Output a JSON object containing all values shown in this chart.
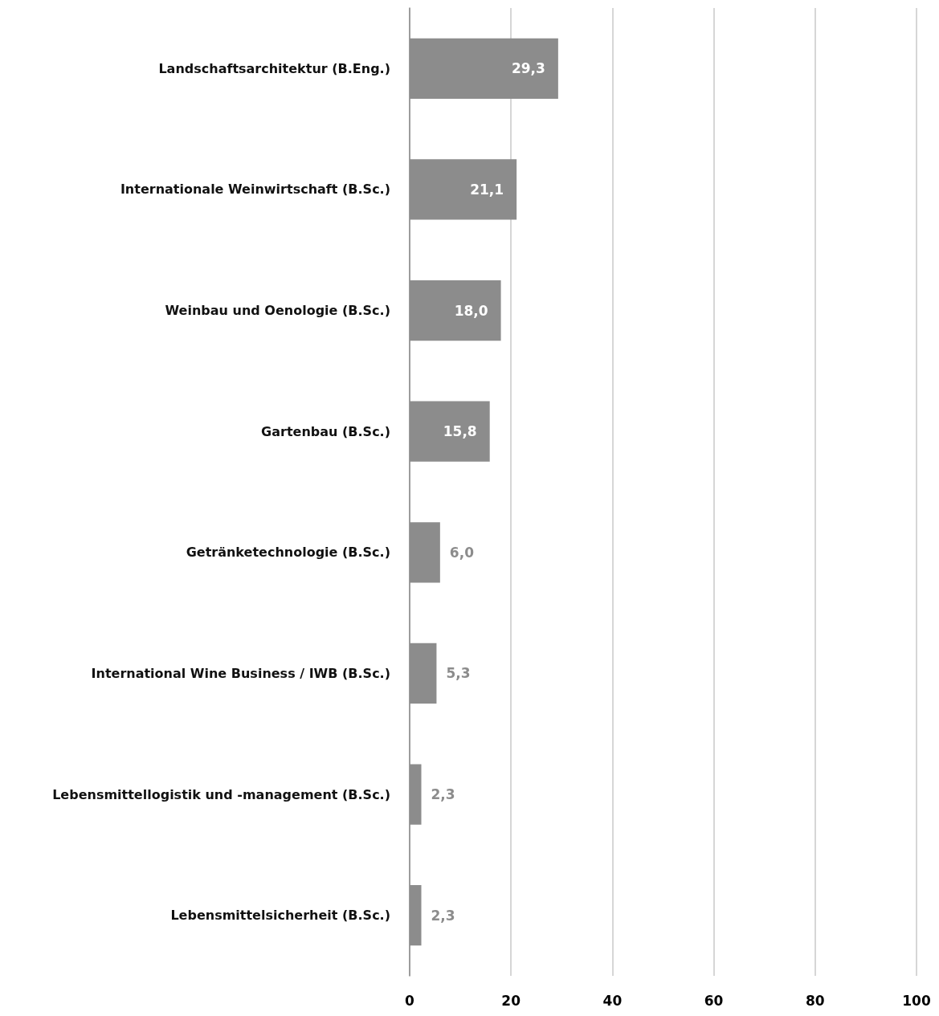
{
  "chart_data": {
    "type": "bar",
    "orientation": "horizontal",
    "categories": [
      "Landschaftsarchitektur (B.Eng.)",
      "Internationale Weinwirtschaft (B.Sc.)",
      "Weinbau und Oenologie (B.Sc.)",
      "Gartenbau (B.Sc.)",
      "Getränketechnologie (B.Sc.)",
      "International Wine Business / IWB (B.Sc.)",
      "Lebensmittellogistik und -management (B.Sc.)",
      "Lebensmittelsicherheit (B.Sc.)"
    ],
    "values": [
      29.3,
      21.1,
      18.0,
      15.8,
      6.0,
      5.3,
      2.3,
      2.3
    ],
    "value_labels": [
      "29,3",
      "21,1",
      "18,0",
      "15,8",
      "6,0",
      "5,3",
      "2,3",
      "2,3"
    ],
    "color": "#8c8c8c",
    "xlim": [
      0,
      100
    ],
    "xticks": [
      0,
      20,
      40,
      60,
      80,
      100
    ],
    "grid": "x"
  }
}
